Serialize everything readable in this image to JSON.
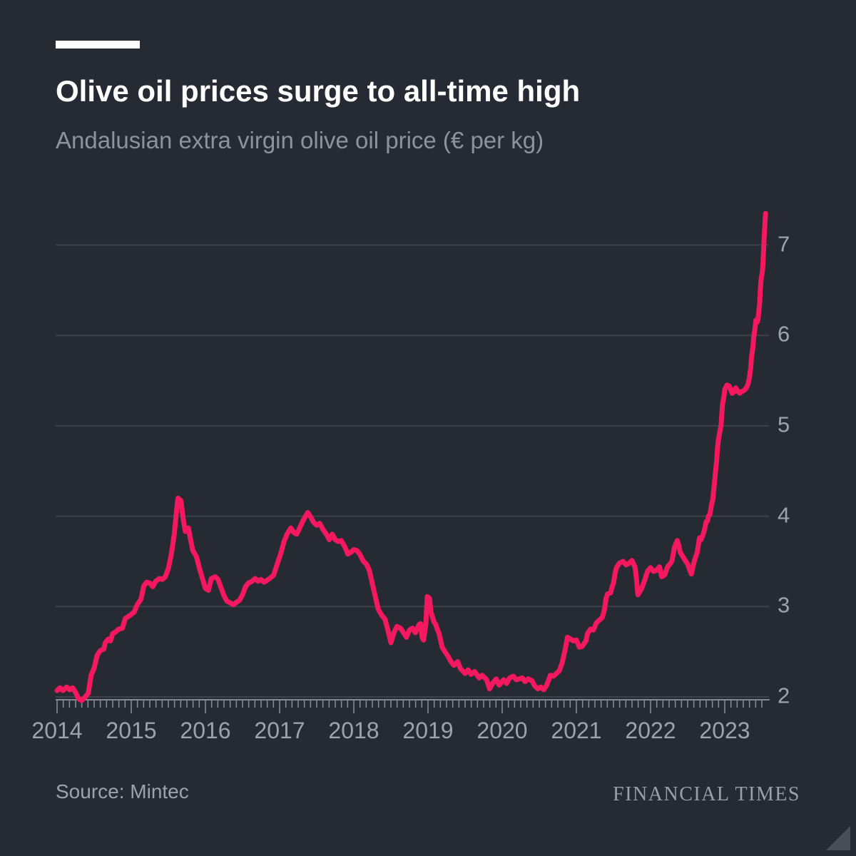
{
  "header": {
    "title": "Olive oil prices surge to all-time high",
    "subtitle": "Andalusian extra virgin olive oil price (€ per kg)"
  },
  "footer": {
    "source": "Source: Mintec",
    "brand": "FINANCIAL TIMES"
  },
  "colors": {
    "background": "#262a33",
    "accent_bar": "#ffffff",
    "title": "#ffffff",
    "subtitle": "#8d939c",
    "line": "#f4185f",
    "grid": "#3c414b",
    "axis": "#848a93",
    "tick_label": "#9da3ac",
    "brand": "#99a0a8",
    "corner_triangle": "#4a4f57"
  },
  "chart_data": {
    "type": "line",
    "title": "Olive oil prices surge to all-time high",
    "subtitle": "Andalusian extra virgin olive oil price (€ per kg)",
    "ylabel": "€ per kg",
    "series_name": "Andalusian extra virgin olive oil price",
    "ylim": [
      2,
      7.45
    ],
    "xlim": [
      2014.0,
      2023.62
    ],
    "y_ticks": [
      2,
      3,
      4,
      5,
      6,
      7
    ],
    "x_ticks_years": [
      2014,
      2015,
      2016,
      2017,
      2018,
      2019,
      2020,
      2021,
      2022,
      2023
    ],
    "minor_ticks": "monthly",
    "grid": "horizontal-only",
    "legend": "none",
    "points": [
      [
        2014.0,
        2.07
      ],
      [
        2014.04,
        2.1
      ],
      [
        2014.08,
        2.07
      ],
      [
        2014.13,
        2.11
      ],
      [
        2014.17,
        2.08
      ],
      [
        2014.21,
        2.1
      ],
      [
        2014.25,
        2.05
      ],
      [
        2014.29,
        1.98
      ],
      [
        2014.33,
        1.96
      ],
      [
        2014.38,
        2.0
      ],
      [
        2014.42,
        2.04
      ],
      [
        2014.46,
        2.24
      ],
      [
        2014.5,
        2.32
      ],
      [
        2014.54,
        2.46
      ],
      [
        2014.58,
        2.51
      ],
      [
        2014.63,
        2.53
      ],
      [
        2014.65,
        2.6
      ],
      [
        2014.69,
        2.64
      ],
      [
        2014.72,
        2.62
      ],
      [
        2014.75,
        2.7
      ],
      [
        2014.79,
        2.72
      ],
      [
        2014.83,
        2.75
      ],
      [
        2014.88,
        2.76
      ],
      [
        2014.92,
        2.87
      ],
      [
        2014.98,
        2.9
      ],
      [
        2015.04,
        2.94
      ],
      [
        2015.08,
        3.02
      ],
      [
        2015.13,
        3.08
      ],
      [
        2015.17,
        3.23
      ],
      [
        2015.21,
        3.27
      ],
      [
        2015.25,
        3.26
      ],
      [
        2015.29,
        3.22
      ],
      [
        2015.33,
        3.28
      ],
      [
        2015.38,
        3.31
      ],
      [
        2015.42,
        3.3
      ],
      [
        2015.46,
        3.33
      ],
      [
        2015.5,
        3.42
      ],
      [
        2015.54,
        3.58
      ],
      [
        2015.58,
        3.8
      ],
      [
        2015.61,
        4.05
      ],
      [
        2015.63,
        4.2
      ],
      [
        2015.67,
        4.17
      ],
      [
        2015.7,
        3.97
      ],
      [
        2015.73,
        3.83
      ],
      [
        2015.77,
        3.87
      ],
      [
        2015.81,
        3.7
      ],
      [
        2015.83,
        3.62
      ],
      [
        2015.88,
        3.55
      ],
      [
        2015.92,
        3.42
      ],
      [
        2015.96,
        3.31
      ],
      [
        2016.0,
        3.2
      ],
      [
        2016.04,
        3.18
      ],
      [
        2016.08,
        3.31
      ],
      [
        2016.13,
        3.33
      ],
      [
        2016.17,
        3.3
      ],
      [
        2016.21,
        3.21
      ],
      [
        2016.25,
        3.12
      ],
      [
        2016.29,
        3.06
      ],
      [
        2016.38,
        3.02
      ],
      [
        2016.42,
        3.05
      ],
      [
        2016.46,
        3.07
      ],
      [
        2016.5,
        3.13
      ],
      [
        2016.54,
        3.22
      ],
      [
        2016.58,
        3.26
      ],
      [
        2016.63,
        3.28
      ],
      [
        2016.67,
        3.31
      ],
      [
        2016.71,
        3.28
      ],
      [
        2016.75,
        3.3
      ],
      [
        2016.79,
        3.27
      ],
      [
        2016.83,
        3.29
      ],
      [
        2016.88,
        3.32
      ],
      [
        2016.92,
        3.35
      ],
      [
        2016.96,
        3.45
      ],
      [
        2017.02,
        3.6
      ],
      [
        2017.06,
        3.72
      ],
      [
        2017.1,
        3.8
      ],
      [
        2017.15,
        3.87
      ],
      [
        2017.19,
        3.82
      ],
      [
        2017.23,
        3.8
      ],
      [
        2017.27,
        3.87
      ],
      [
        2017.31,
        3.94
      ],
      [
        2017.35,
        4.0
      ],
      [
        2017.38,
        4.04
      ],
      [
        2017.42,
        3.99
      ],
      [
        2017.46,
        3.93
      ],
      [
        2017.5,
        3.9
      ],
      [
        2017.54,
        3.92
      ],
      [
        2017.58,
        3.86
      ],
      [
        2017.63,
        3.8
      ],
      [
        2017.67,
        3.74
      ],
      [
        2017.71,
        3.8
      ],
      [
        2017.75,
        3.74
      ],
      [
        2017.79,
        3.72
      ],
      [
        2017.83,
        3.73
      ],
      [
        2017.88,
        3.66
      ],
      [
        2017.92,
        3.58
      ],
      [
        2017.96,
        3.6
      ],
      [
        2018.0,
        3.63
      ],
      [
        2018.04,
        3.62
      ],
      [
        2018.08,
        3.58
      ],
      [
        2018.13,
        3.5
      ],
      [
        2018.17,
        3.47
      ],
      [
        2018.21,
        3.4
      ],
      [
        2018.25,
        3.25
      ],
      [
        2018.29,
        3.11
      ],
      [
        2018.33,
        2.97
      ],
      [
        2018.38,
        2.9
      ],
      [
        2018.42,
        2.86
      ],
      [
        2018.46,
        2.74
      ],
      [
        2018.5,
        2.6
      ],
      [
        2018.54,
        2.71
      ],
      [
        2018.58,
        2.78
      ],
      [
        2018.63,
        2.76
      ],
      [
        2018.67,
        2.71
      ],
      [
        2018.71,
        2.66
      ],
      [
        2018.75,
        2.74
      ],
      [
        2018.79,
        2.76
      ],
      [
        2018.83,
        2.71
      ],
      [
        2018.88,
        2.8
      ],
      [
        2018.9,
        2.81
      ],
      [
        2018.92,
        2.66
      ],
      [
        2018.94,
        2.63
      ],
      [
        2018.97,
        2.8
      ],
      [
        2018.99,
        3.11
      ],
      [
        2019.02,
        3.09
      ],
      [
        2019.04,
        2.94
      ],
      [
        2019.08,
        2.83
      ],
      [
        2019.1,
        2.81
      ],
      [
        2019.13,
        2.74
      ],
      [
        2019.15,
        2.7
      ],
      [
        2019.19,
        2.55
      ],
      [
        2019.23,
        2.5
      ],
      [
        2019.27,
        2.45
      ],
      [
        2019.31,
        2.39
      ],
      [
        2019.35,
        2.35
      ],
      [
        2019.4,
        2.39
      ],
      [
        2019.44,
        2.31
      ],
      [
        2019.5,
        2.26
      ],
      [
        2019.54,
        2.3
      ],
      [
        2019.58,
        2.25
      ],
      [
        2019.63,
        2.28
      ],
      [
        2019.69,
        2.21
      ],
      [
        2019.73,
        2.24
      ],
      [
        2019.79,
        2.19
      ],
      [
        2019.83,
        2.09
      ],
      [
        2019.88,
        2.16
      ],
      [
        2019.92,
        2.2
      ],
      [
        2019.96,
        2.13
      ],
      [
        2020.02,
        2.19
      ],
      [
        2020.06,
        2.15
      ],
      [
        2020.1,
        2.21
      ],
      [
        2020.15,
        2.23
      ],
      [
        2020.19,
        2.19
      ],
      [
        2020.23,
        2.2
      ],
      [
        2020.27,
        2.21
      ],
      [
        2020.31,
        2.17
      ],
      [
        2020.35,
        2.2
      ],
      [
        2020.4,
        2.18
      ],
      [
        2020.44,
        2.12
      ],
      [
        2020.48,
        2.09
      ],
      [
        2020.52,
        2.11
      ],
      [
        2020.56,
        2.08
      ],
      [
        2020.6,
        2.13
      ],
      [
        2020.65,
        2.24
      ],
      [
        2020.69,
        2.23
      ],
      [
        2020.73,
        2.26
      ],
      [
        2020.77,
        2.29
      ],
      [
        2020.81,
        2.38
      ],
      [
        2020.85,
        2.53
      ],
      [
        2020.88,
        2.66
      ],
      [
        2020.92,
        2.64
      ],
      [
        2020.96,
        2.62
      ],
      [
        2021.0,
        2.63
      ],
      [
        2021.04,
        2.55
      ],
      [
        2021.08,
        2.56
      ],
      [
        2021.13,
        2.62
      ],
      [
        2021.15,
        2.7
      ],
      [
        2021.19,
        2.75
      ],
      [
        2021.23,
        2.74
      ],
      [
        2021.27,
        2.82
      ],
      [
        2021.31,
        2.85
      ],
      [
        2021.35,
        2.88
      ],
      [
        2021.38,
        2.97
      ],
      [
        2021.4,
        3.09
      ],
      [
        2021.42,
        3.14
      ],
      [
        2021.46,
        3.15
      ],
      [
        2021.48,
        3.21
      ],
      [
        2021.5,
        3.26
      ],
      [
        2021.52,
        3.36
      ],
      [
        2021.54,
        3.43
      ],
      [
        2021.58,
        3.48
      ],
      [
        2021.63,
        3.5
      ],
      [
        2021.67,
        3.46
      ],
      [
        2021.71,
        3.48
      ],
      [
        2021.75,
        3.51
      ],
      [
        2021.77,
        3.47
      ],
      [
        2021.79,
        3.44
      ],
      [
        2021.81,
        3.31
      ],
      [
        2021.83,
        3.13
      ],
      [
        2021.88,
        3.2
      ],
      [
        2021.92,
        3.29
      ],
      [
        2021.96,
        3.39
      ],
      [
        2022.0,
        3.43
      ],
      [
        2022.04,
        3.39
      ],
      [
        2022.08,
        3.4
      ],
      [
        2022.12,
        3.44
      ],
      [
        2022.15,
        3.33
      ],
      [
        2022.19,
        3.35
      ],
      [
        2022.23,
        3.44
      ],
      [
        2022.27,
        3.48
      ],
      [
        2022.29,
        3.51
      ],
      [
        2022.32,
        3.65
      ],
      [
        2022.36,
        3.73
      ],
      [
        2022.38,
        3.68
      ],
      [
        2022.4,
        3.6
      ],
      [
        2022.43,
        3.56
      ],
      [
        2022.46,
        3.52
      ],
      [
        2022.5,
        3.47
      ],
      [
        2022.53,
        3.4
      ],
      [
        2022.55,
        3.36
      ],
      [
        2022.58,
        3.47
      ],
      [
        2022.6,
        3.53
      ],
      [
        2022.63,
        3.6
      ],
      [
        2022.66,
        3.76
      ],
      [
        2022.68,
        3.74
      ],
      [
        2022.71,
        3.8
      ],
      [
        2022.73,
        3.86
      ],
      [
        2022.75,
        3.94
      ],
      [
        2022.77,
        3.95
      ],
      [
        2022.78,
        4.0
      ],
      [
        2022.8,
        4.02
      ],
      [
        2022.82,
        4.12
      ],
      [
        2022.84,
        4.19
      ],
      [
        2022.85,
        4.28
      ],
      [
        2022.86,
        4.35
      ],
      [
        2022.87,
        4.45
      ],
      [
        2022.89,
        4.61
      ],
      [
        2022.9,
        4.73
      ],
      [
        2022.91,
        4.81
      ],
      [
        2022.92,
        4.87
      ],
      [
        2022.93,
        4.92
      ],
      [
        2022.95,
        5.0
      ],
      [
        2022.96,
        5.12
      ],
      [
        2022.97,
        5.24
      ],
      [
        2022.99,
        5.33
      ],
      [
        2023.0,
        5.4
      ],
      [
        2023.03,
        5.45
      ],
      [
        2023.06,
        5.44
      ],
      [
        2023.08,
        5.4
      ],
      [
        2023.1,
        5.36
      ],
      [
        2023.13,
        5.38
      ],
      [
        2023.15,
        5.42
      ],
      [
        2023.17,
        5.39
      ],
      [
        2023.2,
        5.36
      ],
      [
        2023.23,
        5.38
      ],
      [
        2023.26,
        5.39
      ],
      [
        2023.29,
        5.42
      ],
      [
        2023.31,
        5.45
      ],
      [
        2023.33,
        5.52
      ],
      [
        2023.35,
        5.64
      ],
      [
        2023.36,
        5.75
      ],
      [
        2023.38,
        5.87
      ],
      [
        2023.39,
        5.98
      ],
      [
        2023.41,
        6.09
      ],
      [
        2023.42,
        6.17
      ],
      [
        2023.44,
        6.15
      ],
      [
        2023.45,
        6.19
      ],
      [
        2023.47,
        6.35
      ],
      [
        2023.48,
        6.51
      ],
      [
        2023.49,
        6.62
      ],
      [
        2023.51,
        6.72
      ],
      [
        2023.52,
        6.88
      ],
      [
        2023.53,
        7.06
      ],
      [
        2023.54,
        7.22
      ],
      [
        2023.55,
        7.35
      ]
    ]
  }
}
